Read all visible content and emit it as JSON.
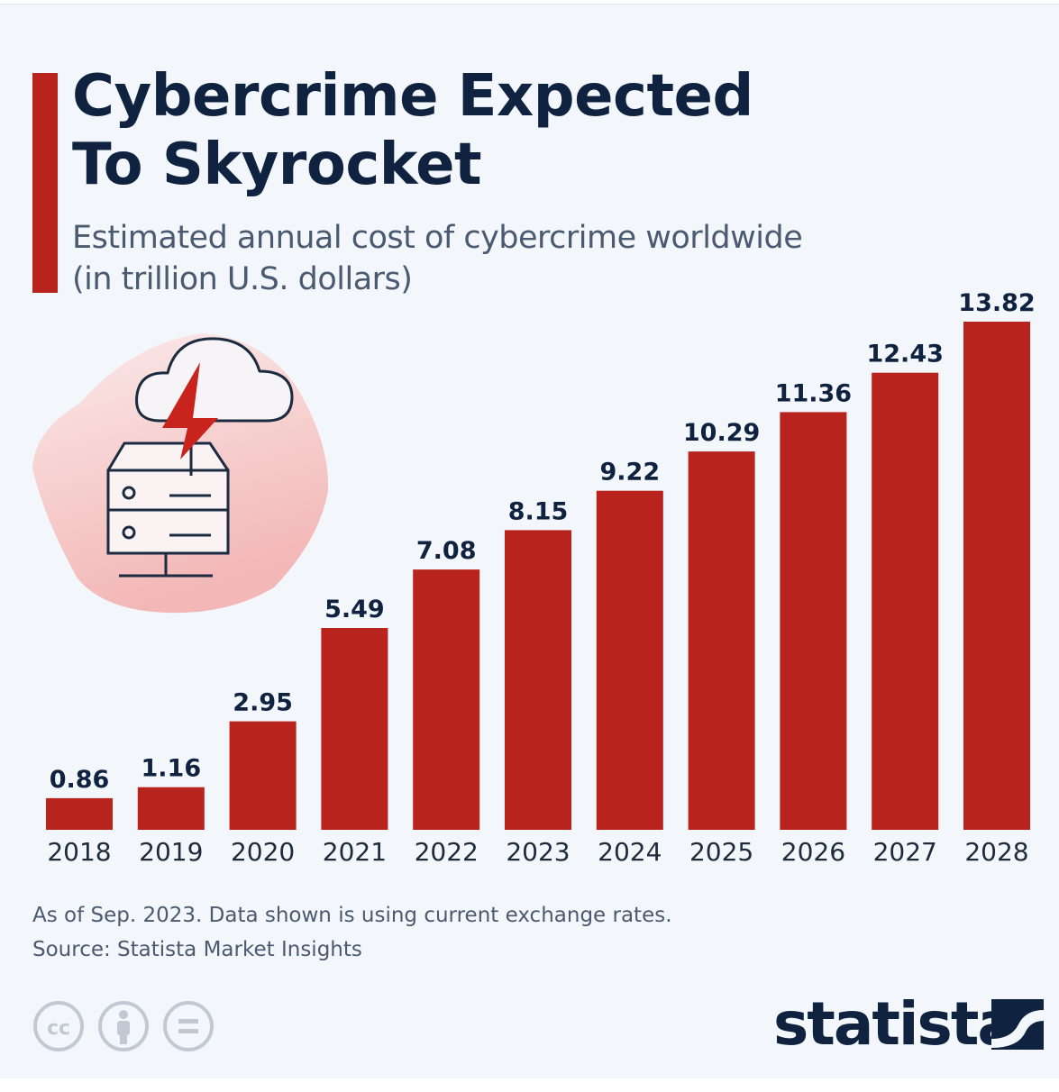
{
  "header": {
    "title_line1": "Cybercrime Expected",
    "title_line2": "To Skyrocket",
    "subtitle_line1": "Estimated annual cost of cybercrime worldwide",
    "subtitle_line2": "(in trillion U.S. dollars)"
  },
  "colors": {
    "accent": "#b8231d",
    "title": "#0f2340",
    "background": "#f3f6fa"
  },
  "illustration": {
    "icon": "cloud-server-lightning-icon"
  },
  "chart_data": {
    "type": "bar",
    "categories": [
      "2018",
      "2019",
      "2020",
      "2021",
      "2022",
      "2023",
      "2024",
      "2025",
      "2026",
      "2027",
      "2028"
    ],
    "values": [
      0.86,
      1.16,
      2.95,
      5.49,
      7.08,
      8.15,
      9.22,
      10.29,
      11.36,
      12.43,
      13.82
    ],
    "value_labels": [
      "0.86",
      "1.16",
      "2.95",
      "5.49",
      "7.08",
      "8.15",
      "9.22",
      "10.29",
      "11.36",
      "12.43",
      "13.82"
    ],
    "title": "Cybercrime Expected To Skyrocket",
    "subtitle": "Estimated annual cost of cybercrime worldwide (in trillion U.S. dollars)",
    "xlabel": "",
    "ylabel": "",
    "ylim": [
      0,
      13.82
    ],
    "grid": false,
    "legend": "none",
    "bar_color": "#b8231d"
  },
  "footer": {
    "note": "As of Sep. 2023. Data shown is using current exchange rates.",
    "source": "Source: Statista Market Insights",
    "license_icons": [
      "creative-commons-icon",
      "attribution-icon",
      "no-derivatives-icon"
    ],
    "brand": "statista"
  }
}
